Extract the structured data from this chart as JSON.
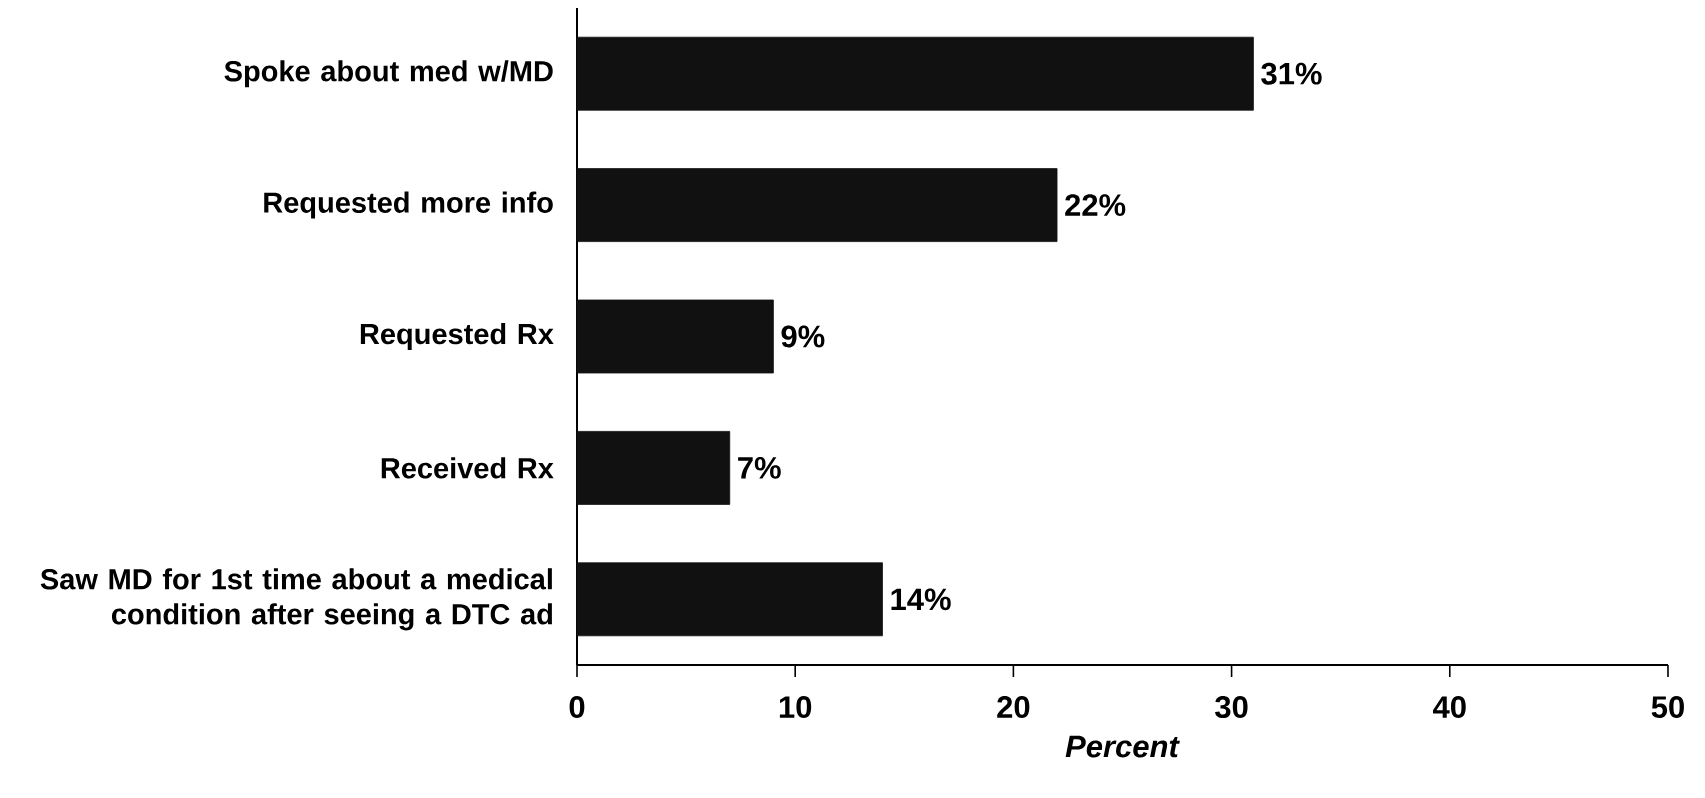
{
  "chart_data": {
    "type": "bar",
    "orientation": "horizontal",
    "xlabel": "*Percent*",
    "categories": [
      "Spoke about med w/MD",
      "Requested more info",
      "Requested Rx",
      "Received Rx",
      "Saw MD for 1st time about a medical condition after seeing a DTC ad"
    ],
    "values": [
      31,
      22,
      9,
      7,
      14
    ],
    "value_labels": [
      "31%",
      "22%",
      "9%",
      "7%",
      "14%"
    ],
    "color": "#111111",
    "xlim": [
      0,
      50
    ],
    "xticks": [
      0,
      10,
      20,
      30,
      40,
      50
    ]
  }
}
